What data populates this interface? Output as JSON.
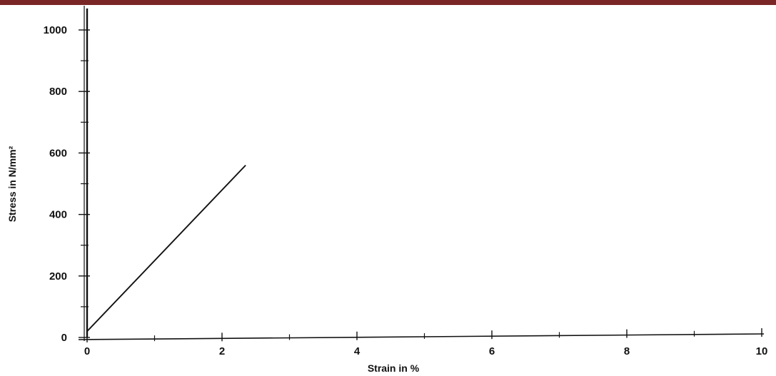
{
  "colors": {
    "top_bar": "#7a2626",
    "ink": "#111111"
  },
  "chart_data": {
    "type": "line",
    "title": "",
    "xlabel": "Strain in %",
    "ylabel": "Stress in N/mm²",
    "xlim": [
      0,
      10
    ],
    "ylim": [
      0,
      1000
    ],
    "x_ticks_labeled": [
      "0",
      "2",
      "4",
      "6",
      "8",
      "10"
    ],
    "x_ticks_minor": [
      1,
      3,
      5,
      7,
      9
    ],
    "y_ticks_labeled": [
      "0",
      "200",
      "400",
      "600",
      "800",
      "1000"
    ],
    "y_ticks_minor": [
      100,
      300,
      500,
      700,
      900
    ],
    "grid": false,
    "legend": "none",
    "series": [
      {
        "x": [
          0.0,
          0.0,
          0.0
        ],
        "y": [
          0,
          1000,
          1070
        ]
      },
      {
        "x": [
          0.0,
          2.35
        ],
        "y": [
          20,
          560
        ]
      }
    ]
  }
}
